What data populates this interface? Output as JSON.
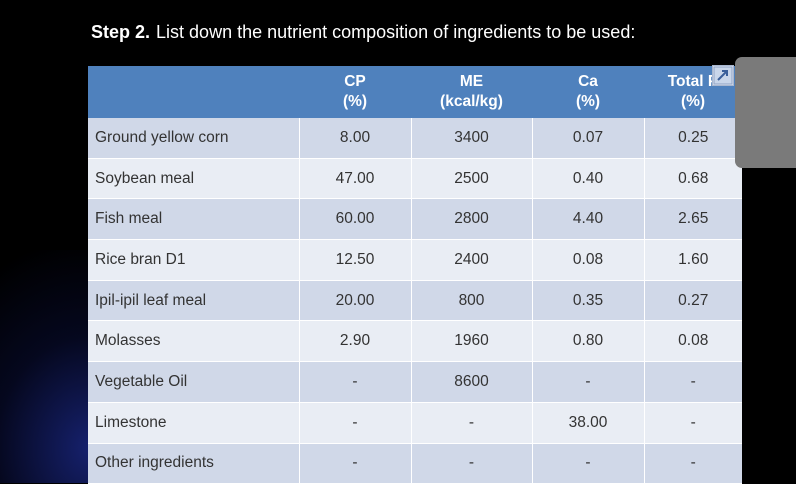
{
  "title": {
    "step": "Step 2.",
    "text": "List down the nutrient composition of ingredients to be used:"
  },
  "table": {
    "headers": [
      {
        "label": "",
        "unit": ""
      },
      {
        "label": "CP",
        "unit": "(%)"
      },
      {
        "label": "ME",
        "unit": "(kcal/kg)"
      },
      {
        "label": "Ca",
        "unit": "(%)"
      },
      {
        "label": "Total P",
        "unit": "(%)"
      }
    ],
    "rows": [
      {
        "name": "Ground yellow corn",
        "cp": "8.00",
        "me": "3400",
        "ca": "0.07",
        "p": "0.25"
      },
      {
        "name": "Soybean meal",
        "cp": "47.00",
        "me": "2500",
        "ca": "0.40",
        "p": "0.68"
      },
      {
        "name": "Fish meal",
        "cp": "60.00",
        "me": "2800",
        "ca": "4.40",
        "p": "2.65"
      },
      {
        "name": "Rice bran D1",
        "cp": "12.50",
        "me": "2400",
        "ca": "0.08",
        "p": "1.60"
      },
      {
        "name": "Ipil-ipil leaf meal",
        "cp": "20.00",
        "me": "800",
        "ca": "0.35",
        "p": "0.27"
      },
      {
        "name": "Molasses",
        "cp": "2.90",
        "me": "1960",
        "ca": "0.80",
        "p": "0.08"
      },
      {
        "name": "Vegetable Oil",
        "cp": "-",
        "me": "8600",
        "ca": "-",
        "p": "-"
      },
      {
        "name": "Limestone",
        "cp": "-",
        "me": "-",
        "ca": "38.00",
        "p": "-"
      },
      {
        "name": "Other ingredients",
        "cp": "-",
        "me": "-",
        "ca": "-",
        "p": "-"
      }
    ]
  },
  "icons": {
    "expand": "expand-arrow-icon"
  },
  "colors": {
    "header": "#4f81bd",
    "row_odd": "#d0d8e8",
    "row_even": "#e9edf4",
    "background": "#000000"
  }
}
